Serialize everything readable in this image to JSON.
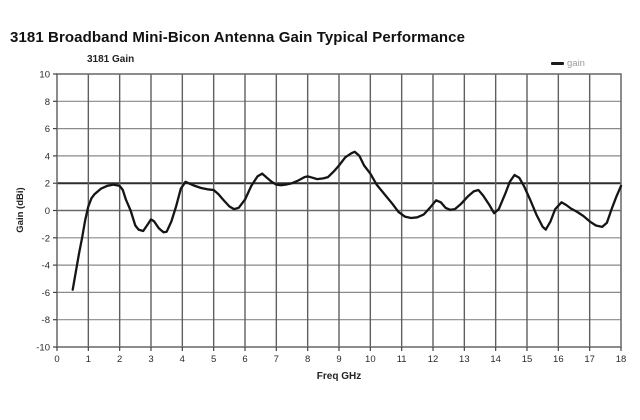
{
  "page": {
    "title": "3181 Broadband Mini-Bicon Antenna Gain Typical Performance"
  },
  "chart": {
    "title": "3181 Gain",
    "legend": {
      "label": "gain"
    },
    "x_axis_title": "Freq GHz",
    "y_axis_title": "Gain (dBi)"
  },
  "colors": {
    "curve": "#151515",
    "grid_vertical": "#5f5f5f",
    "grid_horizontal": "#8a8a8a",
    "grid_zero_line": "#6a6a6a",
    "grid_two_line": "#2d2d2d",
    "border": "#6f6f6f",
    "tick": "#444444",
    "tick_label": "#2b2b2b",
    "legend_text": "#9b9b9b"
  },
  "chart_data": {
    "type": "line",
    "title": "3181 Gain",
    "xlabel": "Freq GHz",
    "ylabel": "Gain (dBi)",
    "xlim": [
      0,
      18
    ],
    "ylim": [
      -10,
      10
    ],
    "x_ticks": [
      0,
      1,
      2,
      3,
      4,
      5,
      6,
      7,
      8,
      9,
      10,
      11,
      12,
      13,
      14,
      15,
      16,
      17,
      18
    ],
    "y_ticks": [
      10,
      8,
      6,
      4,
      2,
      0,
      -2,
      -4,
      -6,
      -8,
      -10
    ],
    "grid": true,
    "legend_position": "top-right",
    "series": [
      {
        "name": "gain",
        "points": [
          [
            0.5,
            -5.8
          ],
          [
            0.6,
            -4.5
          ],
          [
            0.7,
            -3.2
          ],
          [
            0.8,
            -2.0
          ],
          [
            0.9,
            -0.7
          ],
          [
            1.0,
            0.3
          ],
          [
            1.1,
            0.9
          ],
          [
            1.2,
            1.2
          ],
          [
            1.4,
            1.6
          ],
          [
            1.6,
            1.8
          ],
          [
            1.8,
            1.9
          ],
          [
            2.0,
            1.8
          ],
          [
            2.1,
            1.5
          ],
          [
            2.2,
            0.8
          ],
          [
            2.35,
            0.0
          ],
          [
            2.5,
            -1.1
          ],
          [
            2.6,
            -1.4
          ],
          [
            2.75,
            -1.5
          ],
          [
            2.9,
            -1.0
          ],
          [
            3.0,
            -0.65
          ],
          [
            3.1,
            -0.8
          ],
          [
            3.25,
            -1.3
          ],
          [
            3.4,
            -1.6
          ],
          [
            3.5,
            -1.55
          ],
          [
            3.65,
            -0.8
          ],
          [
            3.8,
            0.3
          ],
          [
            3.95,
            1.6
          ],
          [
            4.1,
            2.1
          ],
          [
            4.25,
            1.95
          ],
          [
            4.4,
            1.8
          ],
          [
            4.6,
            1.65
          ],
          [
            4.8,
            1.55
          ],
          [
            5.0,
            1.5
          ],
          [
            5.15,
            1.2
          ],
          [
            5.3,
            0.8
          ],
          [
            5.5,
            0.3
          ],
          [
            5.65,
            0.1
          ],
          [
            5.8,
            0.2
          ],
          [
            6.0,
            0.8
          ],
          [
            6.2,
            1.8
          ],
          [
            6.4,
            2.5
          ],
          [
            6.55,
            2.7
          ],
          [
            6.7,
            2.4
          ],
          [
            6.85,
            2.1
          ],
          [
            7.0,
            1.9
          ],
          [
            7.15,
            1.85
          ],
          [
            7.3,
            1.9
          ],
          [
            7.5,
            2.0
          ],
          [
            7.7,
            2.2
          ],
          [
            7.9,
            2.45
          ],
          [
            8.0,
            2.5
          ],
          [
            8.15,
            2.4
          ],
          [
            8.3,
            2.3
          ],
          [
            8.5,
            2.35
          ],
          [
            8.65,
            2.45
          ],
          [
            8.85,
            2.9
          ],
          [
            9.0,
            3.3
          ],
          [
            9.2,
            3.9
          ],
          [
            9.4,
            4.2
          ],
          [
            9.5,
            4.3
          ],
          [
            9.65,
            4.0
          ],
          [
            9.8,
            3.3
          ],
          [
            10.0,
            2.7
          ],
          [
            10.2,
            1.9
          ],
          [
            10.45,
            1.2
          ],
          [
            10.7,
            0.5
          ],
          [
            10.9,
            -0.1
          ],
          [
            11.1,
            -0.45
          ],
          [
            11.3,
            -0.55
          ],
          [
            11.5,
            -0.5
          ],
          [
            11.7,
            -0.3
          ],
          [
            11.9,
            0.2
          ],
          [
            12.1,
            0.75
          ],
          [
            12.25,
            0.6
          ],
          [
            12.4,
            0.2
          ],
          [
            12.55,
            0.05
          ],
          [
            12.7,
            0.1
          ],
          [
            12.9,
            0.5
          ],
          [
            13.1,
            1.0
          ],
          [
            13.3,
            1.4
          ],
          [
            13.45,
            1.5
          ],
          [
            13.6,
            1.1
          ],
          [
            13.8,
            0.4
          ],
          [
            13.95,
            -0.2
          ],
          [
            14.1,
            0.1
          ],
          [
            14.3,
            1.2
          ],
          [
            14.45,
            2.1
          ],
          [
            14.6,
            2.6
          ],
          [
            14.75,
            2.4
          ],
          [
            14.9,
            1.8
          ],
          [
            15.1,
            0.8
          ],
          [
            15.3,
            -0.3
          ],
          [
            15.5,
            -1.2
          ],
          [
            15.6,
            -1.4
          ],
          [
            15.75,
            -0.8
          ],
          [
            15.9,
            0.1
          ],
          [
            16.1,
            0.6
          ],
          [
            16.25,
            0.4
          ],
          [
            16.4,
            0.15
          ],
          [
            16.6,
            -0.1
          ],
          [
            16.8,
            -0.4
          ],
          [
            17.0,
            -0.8
          ],
          [
            17.2,
            -1.1
          ],
          [
            17.4,
            -1.2
          ],
          [
            17.55,
            -0.9
          ],
          [
            17.7,
            0.1
          ],
          [
            17.85,
            1.0
          ],
          [
            18.0,
            1.8
          ]
        ]
      }
    ]
  }
}
